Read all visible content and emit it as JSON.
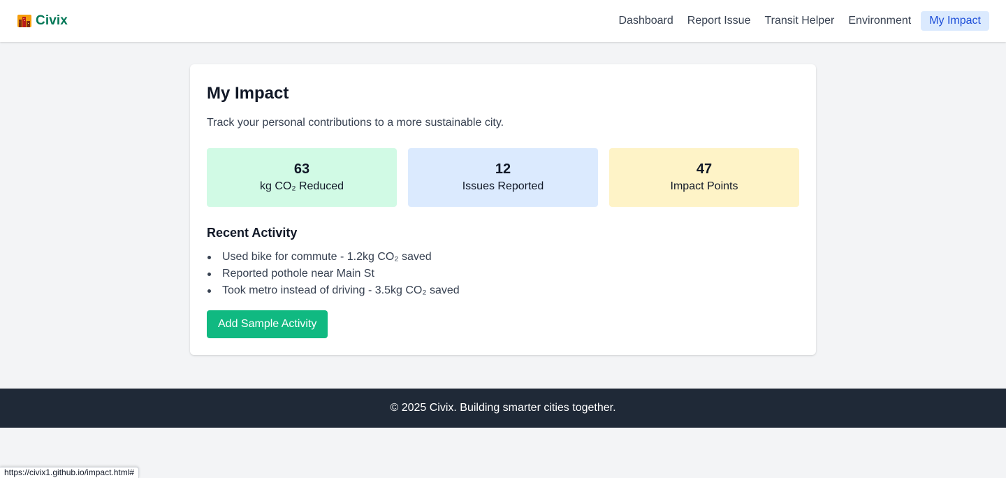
{
  "app": {
    "name": "Civix",
    "logo_icon": "city-buildings-icon",
    "brand_color": "#047857"
  },
  "nav": {
    "items": [
      {
        "label": "Dashboard",
        "active": false
      },
      {
        "label": "Report Issue",
        "active": false
      },
      {
        "label": "Transit Helper",
        "active": false
      },
      {
        "label": "Environment",
        "active": false
      },
      {
        "label": "My Impact",
        "active": true
      }
    ],
    "active_bg": "#dbeafe",
    "active_color": "#1d4ed8"
  },
  "main": {
    "title": "My Impact",
    "subtitle": "Track your personal contributions to a more sustainable city.",
    "stats": [
      {
        "value": "63",
        "label": "kg CO₂ Reduced",
        "color": "#d1fae5"
      },
      {
        "value": "12",
        "label": "Issues Reported",
        "color": "#dbeafe"
      },
      {
        "value": "47",
        "label": "Impact Points",
        "color": "#fef3c7"
      }
    ],
    "recent_activity": {
      "title": "Recent Activity",
      "items": [
        "Used bike for commute - 1.2kg CO₂ saved",
        "Reported pothole near Main St",
        "Took metro instead of driving - 3.5kg CO₂ saved"
      ]
    },
    "add_button_label": "Add Sample Activity",
    "add_button_color": "#10b981"
  },
  "footer": {
    "text": "© 2025 Civix. Building smarter cities together.",
    "bg": "#1f2937"
  },
  "status_bar": {
    "url": "https://civix1.github.io/impact.html#"
  }
}
